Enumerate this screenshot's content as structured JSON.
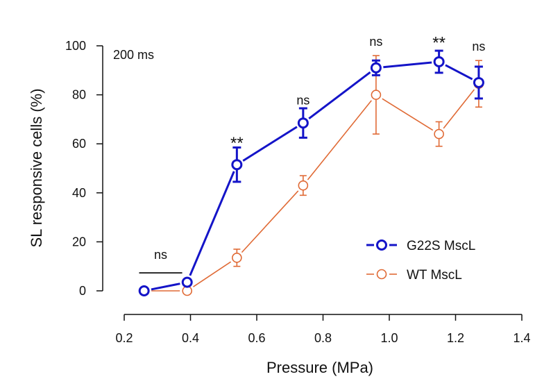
{
  "chart_data": {
    "type": "line",
    "title": "",
    "xlabel": "Pressure (MPa)",
    "ylabel": "SL responsive cells (%)",
    "xlim": [
      0.2,
      1.4
    ],
    "ylim": [
      0,
      100
    ],
    "xticks": [
      0.2,
      0.4,
      0.6,
      0.8,
      1.0,
      1.2,
      1.4
    ],
    "xtick_labels": [
      "0.2",
      "0.4",
      "0.6",
      "0.8",
      "1.0",
      "1.2",
      "1.4"
    ],
    "yticks": [
      0,
      20,
      40,
      60,
      80,
      100
    ],
    "ytick_labels": [
      "0",
      "20",
      "40",
      "60",
      "80",
      "100"
    ],
    "inset_label": "200 ms",
    "legend_position": "right",
    "series": [
      {
        "name": "G22S MscL",
        "color": "#1414c8",
        "x": [
          0.26,
          0.39,
          0.54,
          0.74,
          0.96,
          1.15,
          1.27
        ],
        "y": [
          0,
          3.5,
          51.5,
          68.5,
          91,
          93.5,
          85
        ],
        "err": [
          0,
          0,
          7,
          6,
          3,
          4.5,
          6.5
        ]
      },
      {
        "name": "WT MscL",
        "color": "#e06a35",
        "x": [
          0.26,
          0.39,
          0.54,
          0.74,
          0.96,
          1.15,
          1.27
        ],
        "y": [
          0,
          0,
          13.5,
          43,
          80,
          64,
          84.5
        ],
        "err": [
          0,
          0,
          3.5,
          4,
          16,
          5,
          9.5
        ]
      }
    ],
    "annotations": [
      {
        "text": "ns",
        "x": 0.31,
        "y": 13,
        "bracket": [
          0.245,
          0.375
        ]
      },
      {
        "text": "**",
        "x": 0.54,
        "y": 62
      },
      {
        "text": "ns",
        "x": 0.74,
        "y": 76
      },
      {
        "text": "ns",
        "x": 0.96,
        "y": 100
      },
      {
        "text": "**",
        "x": 1.15,
        "y": 103
      },
      {
        "text": "ns",
        "x": 1.27,
        "y": 98
      }
    ]
  }
}
